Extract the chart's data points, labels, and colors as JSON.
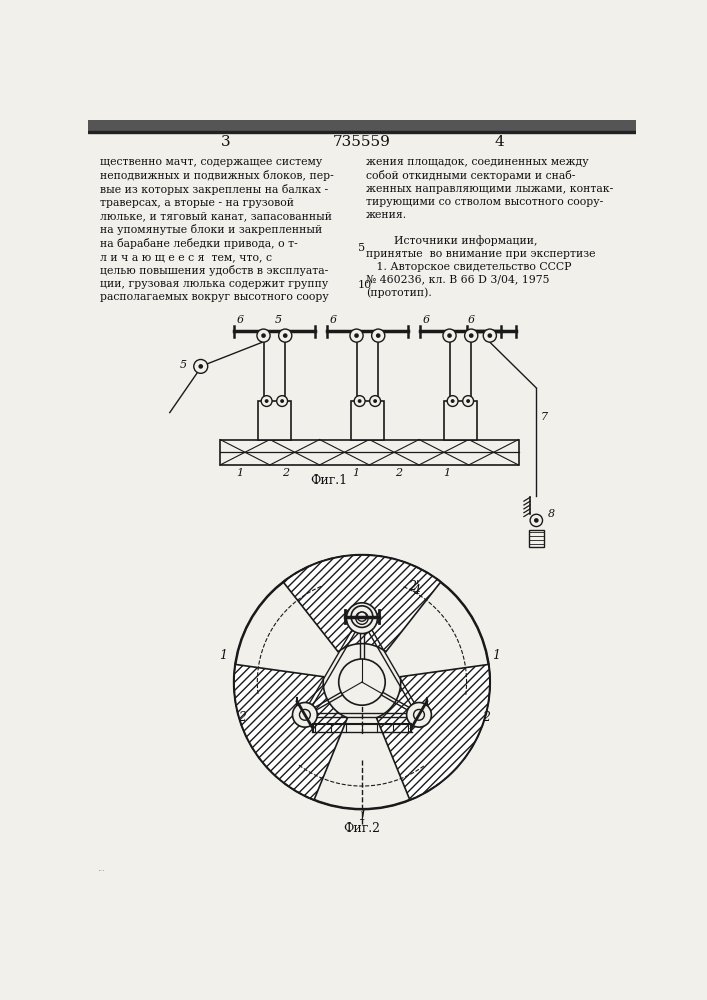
{
  "title": "735559",
  "page_left": "3",
  "page_right": "4",
  "fig1_label": "Фиг.1",
  "fig2_label": "Фиг.2",
  "bg_color": "#f2f0eb",
  "line_color": "#1a1a1a",
  "text_color": "#111111",
  "left_text": "щественно мачт, содержащее систему\nнеподвижных и подвижных блоков, пер-\nвые из которых закреплены на балках -\nтраверсах, а вторые - на грузовой\nлюльке, и тяговый канат, запасованный\nна упомянутые блоки и закрепленный\nна барабане лебедки привода, о т-\nл и ч а ю щ е е с я  тем, что, с\nцелью повышения удобств в эксплуата-\nции, грузовая люлька содержит группу\nрасполагаемых вокруг высотного соору",
  "right_text": "жения площадок, соединенных между\nсобой откидными секторами и снаб-\nженных направляющими лыжами, контак-\nтирующими со стволом высотного соору-\nжения.\n\n        Источники информации,\nпринятые  во внимание при экспертизе\n   1. Авторское свидетельство СССР\n№ 460236, кл. В 66 D 3/04, 1975\n(прототип)."
}
